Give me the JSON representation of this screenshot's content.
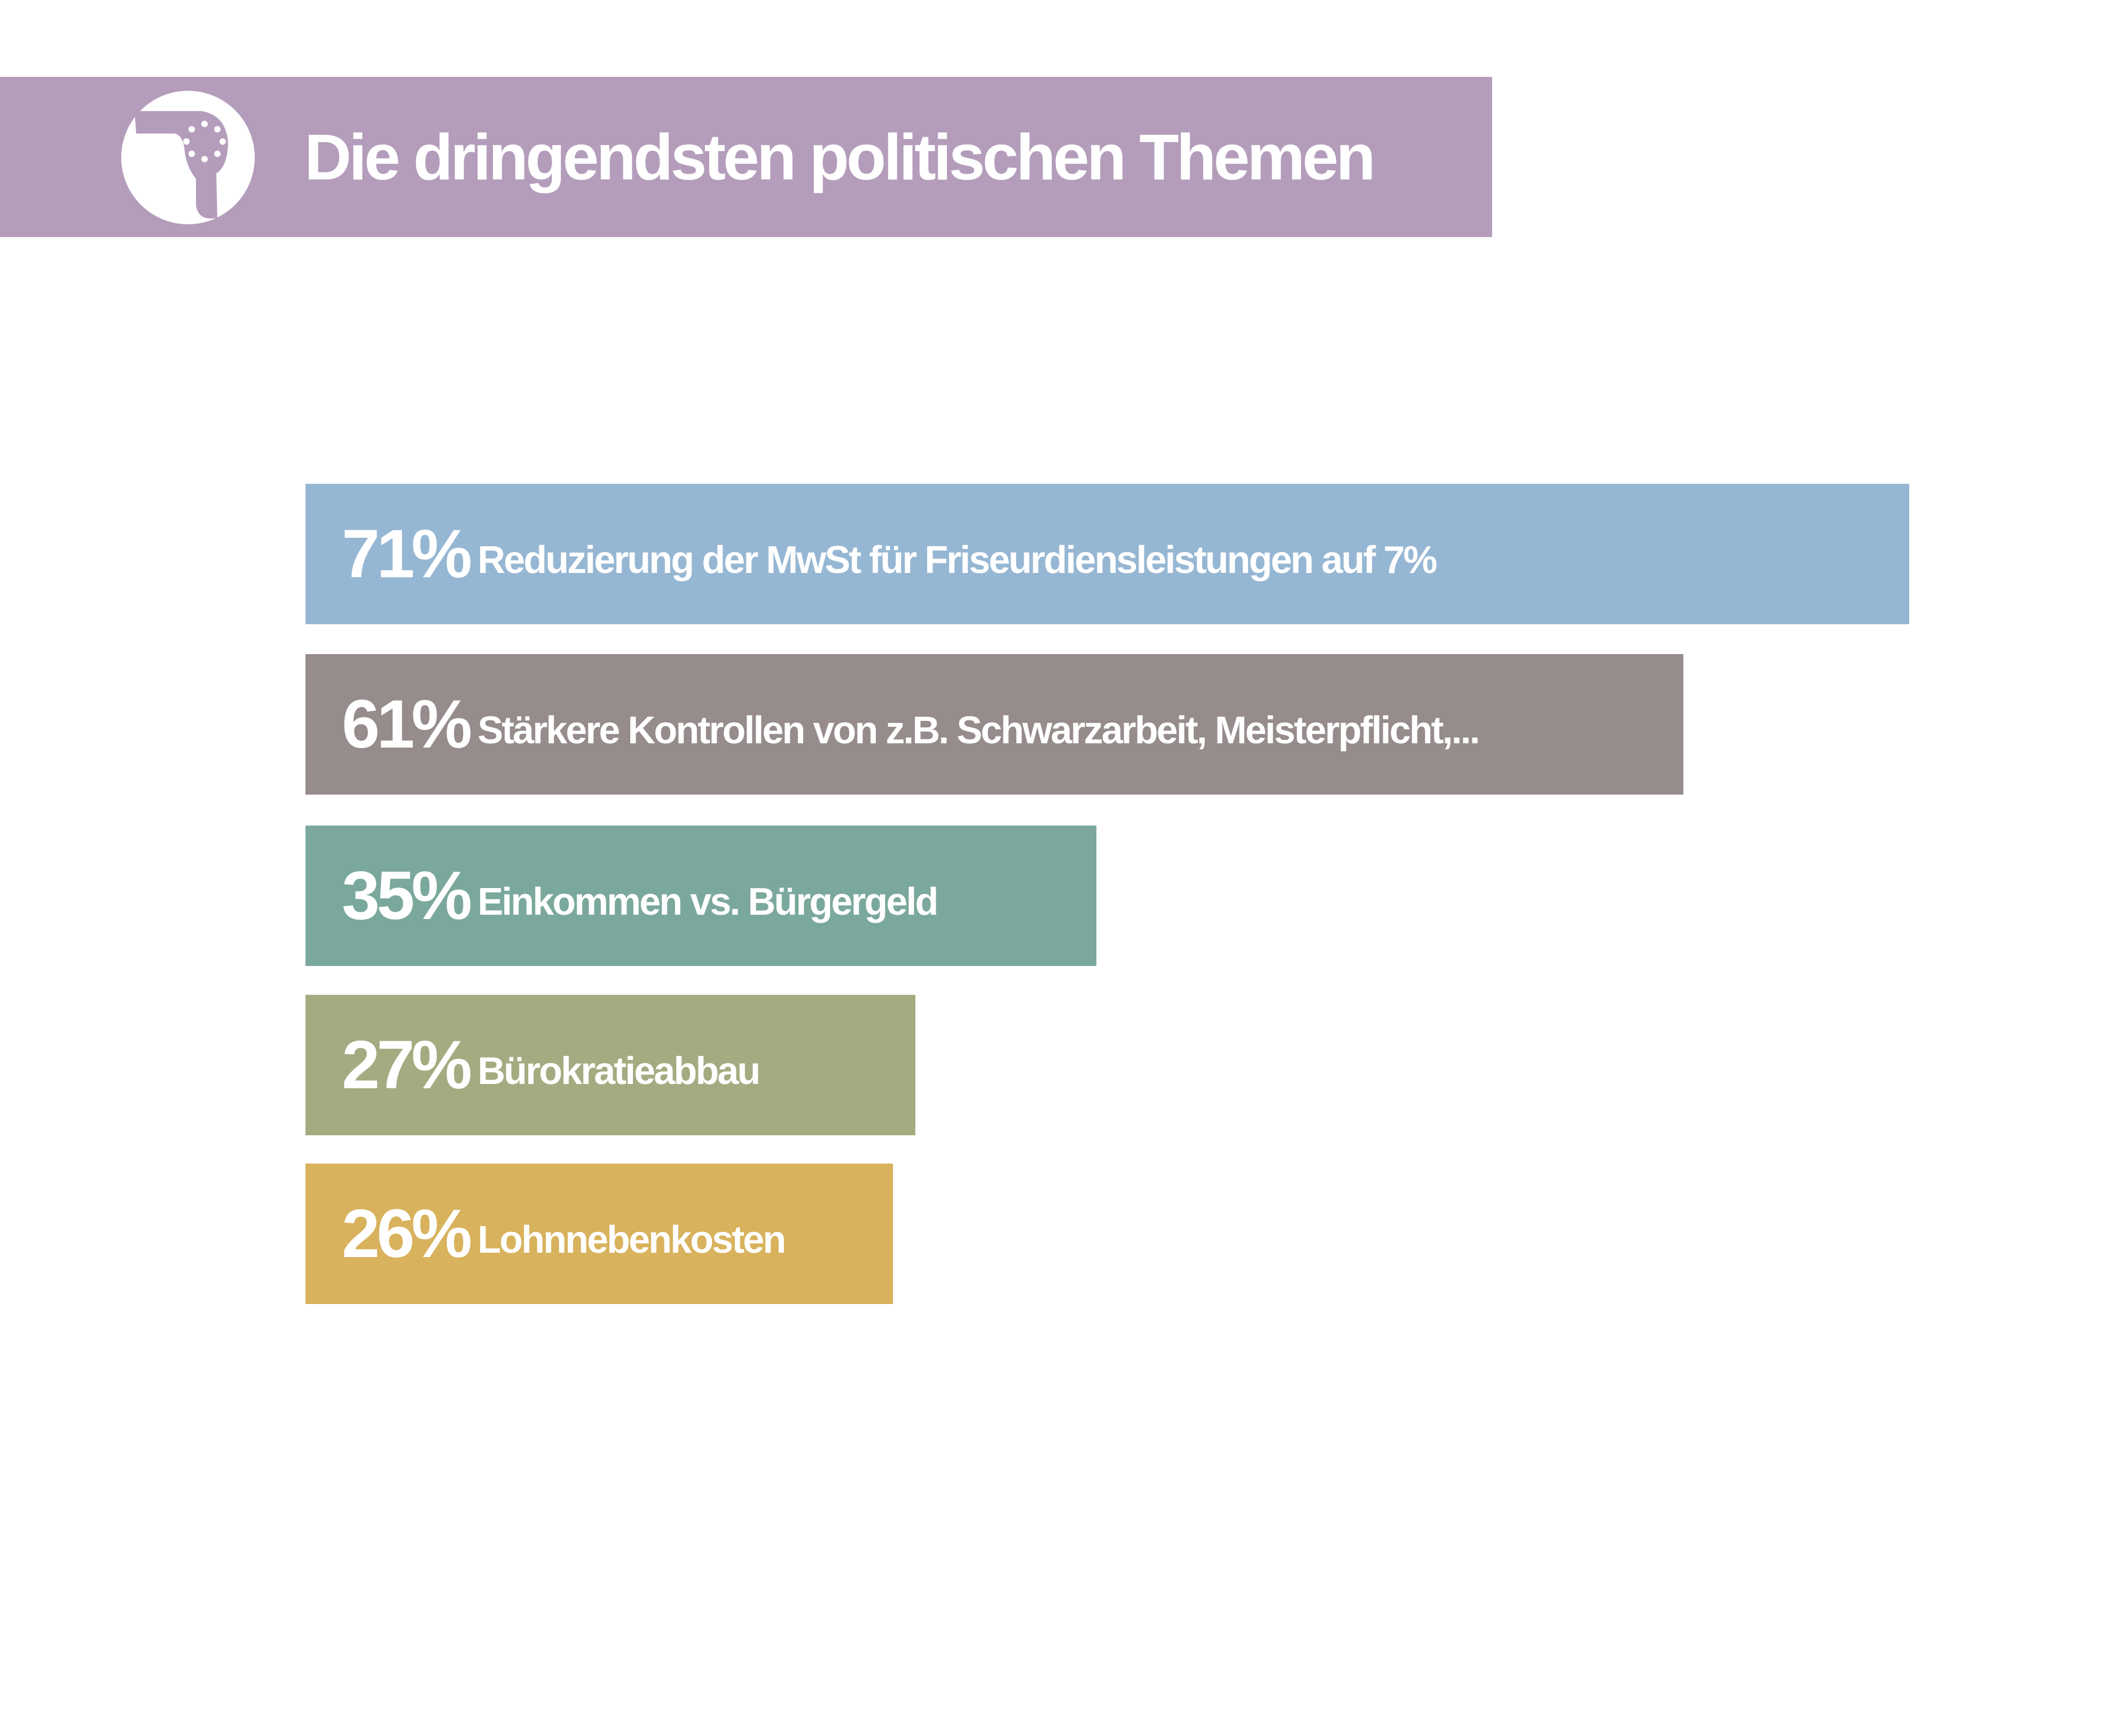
{
  "header": {
    "title": "Die dringendsten politischen Themen",
    "icon": "hair-dryer-icon",
    "color": "#b49dbb"
  },
  "chart_data": {
    "type": "bar",
    "orientation": "horizontal",
    "title": "Die dringendsten politischen Themen",
    "xlabel": "",
    "ylabel": "",
    "xlim": [
      0,
      100
    ],
    "unit": "%",
    "categories": [
      "Reduzierung der MwSt für Friseurdiensleistungen auf 7%",
      "Stärkere Kontrollen von z.B.  Schwarzarbeit, Meisterpflicht,...",
      "Einkommen vs. Bürgergeld",
      "Bürokratieabbau",
      "Lohnnebenkosten"
    ],
    "values": [
      71,
      61,
      35,
      27,
      26
    ],
    "value_labels": [
      "71%",
      "61%",
      "35%",
      "27%",
      "26%"
    ],
    "colors": [
      "#96b7d3",
      "#958c8b",
      "#7ba89d",
      "#a4ab81",
      "#d8b25c"
    ]
  }
}
